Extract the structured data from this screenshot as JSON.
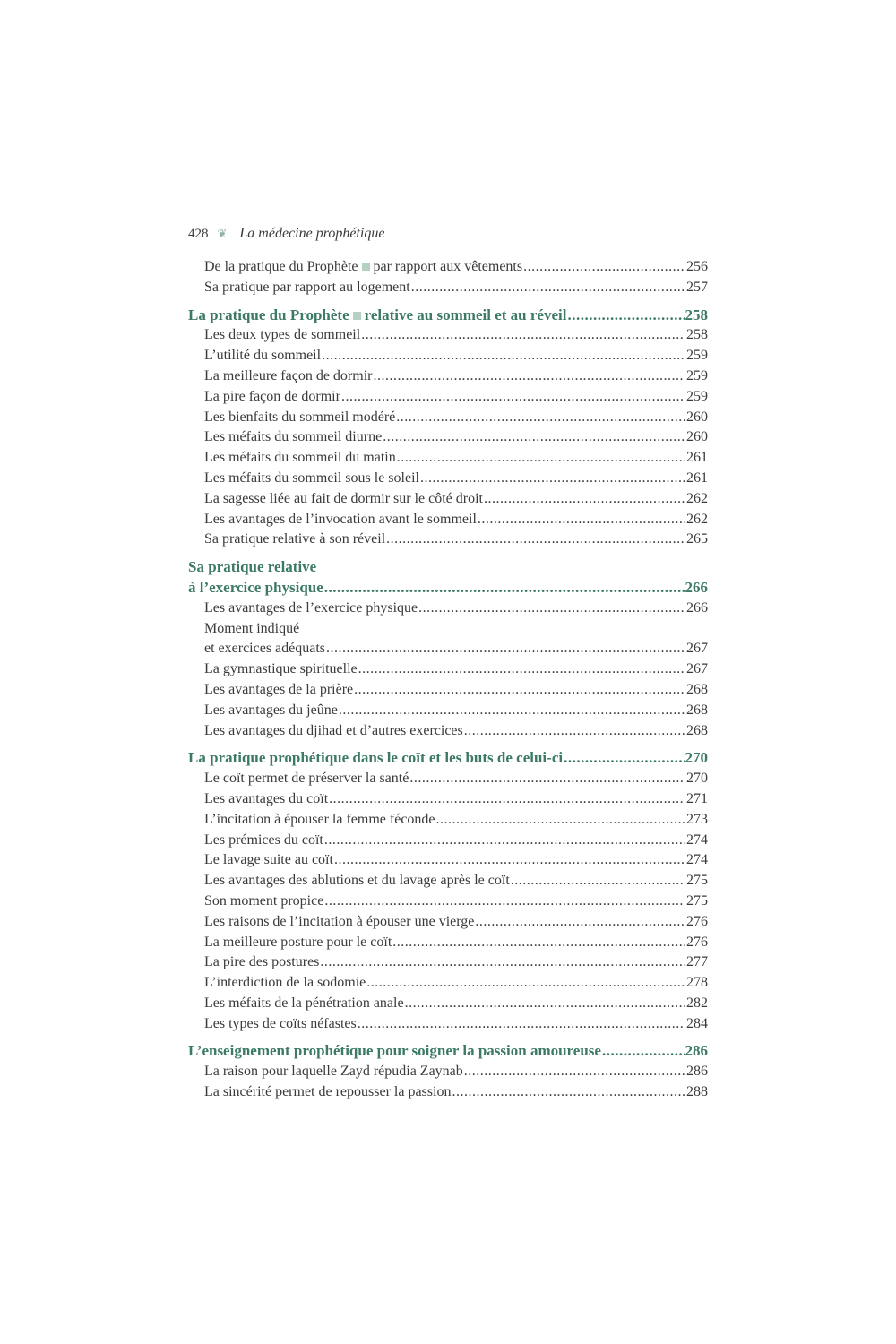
{
  "header": {
    "page_number": "428",
    "ornament_icon": "leaf-ornament",
    "book_title": "La médecine prophétique"
  },
  "colors": {
    "heading": "#3d7a66",
    "text": "#3a3a3a"
  },
  "entries": [
    {
      "type": "sub",
      "text": "De la pratique du Prophète",
      "after": "par rapport aux vêtements",
      "page": "256"
    },
    {
      "type": "sub",
      "text": "Sa pratique par rapport au logement",
      "page": "257"
    },
    {
      "type": "head",
      "text": "La pratique du Prophète",
      "after": "relative au sommeil et au réveil",
      "page": "258"
    },
    {
      "type": "sub",
      "text": "Les deux types de sommeil",
      "page": "258"
    },
    {
      "type": "sub",
      "text": "L’utilité du sommeil",
      "page": "259"
    },
    {
      "type": "sub",
      "text": "La meilleure façon de dormir",
      "page": "259"
    },
    {
      "type": "sub",
      "text": "La pire façon de dormir",
      "page": "259"
    },
    {
      "type": "sub",
      "text": "Les bienfaits du sommeil modéré",
      "page": "260"
    },
    {
      "type": "sub",
      "text": "Les méfaits du sommeil diurne",
      "page": "260"
    },
    {
      "type": "sub",
      "text": "Les méfaits du sommeil du matin",
      "page": "261"
    },
    {
      "type": "sub",
      "text": "Les méfaits du sommeil sous le soleil",
      "page": "261"
    },
    {
      "type": "sub",
      "text": "La sagesse liée au fait de dormir sur le côté droit",
      "page": "262"
    },
    {
      "type": "sub",
      "text": "Les avantages de l’invocation avant le sommeil",
      "page": "262"
    },
    {
      "type": "sub",
      "text": "Sa pratique relative à son réveil",
      "page": "265"
    },
    {
      "type": "head",
      "line1": "Sa pratique relative",
      "text": "à l’exercice physique",
      "page": "266"
    },
    {
      "type": "sub",
      "text": "Les avantages de l’exercice physique",
      "page": "266"
    },
    {
      "type": "sub",
      "line1": "Moment indiqué",
      "text": "et exercices adéquats",
      "page": "267"
    },
    {
      "type": "sub",
      "text": "La gymnastique spirituelle",
      "page": "267"
    },
    {
      "type": "sub",
      "text": "Les avantages de la prière",
      "page": "268"
    },
    {
      "type": "sub",
      "text": "Les avantages du jeûne",
      "page": "268"
    },
    {
      "type": "sub",
      "text": "Les avantages du djihad et d’autres exercices",
      "page": "268"
    },
    {
      "type": "head",
      "text": "La pratique prophétique dans le coït et les buts de celui-ci",
      "page": "270"
    },
    {
      "type": "sub",
      "text": "Le coït permet de préserver la santé",
      "page": "270"
    },
    {
      "type": "sub",
      "text": "Les avantages du coït",
      "page": "271"
    },
    {
      "type": "sub",
      "text": "L’incitation à épouser la femme féconde",
      "page": "273"
    },
    {
      "type": "sub",
      "text": "Les prémices du coït",
      "page": "274"
    },
    {
      "type": "sub",
      "text": "Le lavage suite au coït",
      "page": "274"
    },
    {
      "type": "sub",
      "text": "Les avantages des ablutions et du lavage après le coït",
      "page": "275"
    },
    {
      "type": "sub",
      "text": "Son moment propice",
      "page": "275"
    },
    {
      "type": "sub",
      "text": "Les raisons de l’incitation à épouser une vierge",
      "page": "276"
    },
    {
      "type": "sub",
      "text": "La meilleure posture pour le coït",
      "page": "276"
    },
    {
      "type": "sub",
      "text": "La pire des postures",
      "page": "277"
    },
    {
      "type": "sub",
      "text": "L’interdiction de la sodomie",
      "page": "278"
    },
    {
      "type": "sub",
      "text": "Les méfaits de la pénétration anale",
      "page": "282"
    },
    {
      "type": "sub",
      "text": "Les types de coïts néfastes",
      "page": "284"
    },
    {
      "type": "head",
      "text": "L’enseignement prophétique pour soigner la passion amoureuse",
      "page": "286"
    },
    {
      "type": "sub",
      "text": "La raison pour laquelle Zayd répudia Zaynab",
      "page": "286"
    },
    {
      "type": "sub",
      "text": "La sincérité permet de repousser la passion",
      "page": "288"
    }
  ]
}
